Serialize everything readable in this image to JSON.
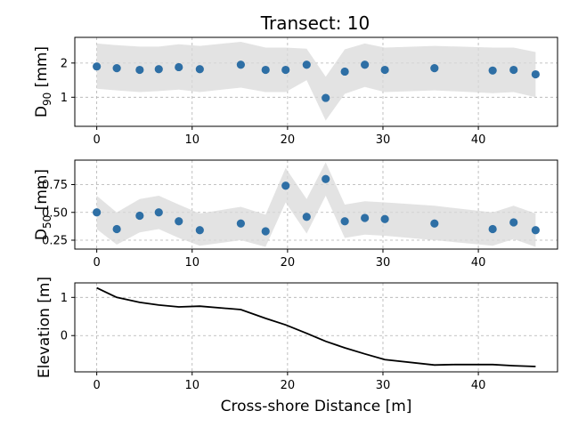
{
  "figure": {
    "title": "Transect: 10"
  },
  "chart_data": [
    {
      "type": "scatter",
      "name": "d90_panel",
      "ylabel_main": "D",
      "ylabel_sub": "90",
      "ylabel_unit": " [mm]",
      "xlim": [
        -2.3,
        48.3
      ],
      "ylim": [
        0.15,
        2.75
      ],
      "xticks": [
        0,
        10,
        20,
        30,
        40
      ],
      "yticks": [
        1,
        2
      ],
      "grid": true,
      "point_color": "#2e6fa5",
      "band_color": "#d9d9d9",
      "x": [
        0,
        2.1,
        4.5,
        6.5,
        8.6,
        10.8,
        15.1,
        17.7,
        19.8,
        22.0,
        24.0,
        26.0,
        28.1,
        30.2,
        35.4,
        41.5,
        43.7,
        46.0
      ],
      "y": [
        1.9,
        1.85,
        1.8,
        1.82,
        1.88,
        1.82,
        1.95,
        1.8,
        1.8,
        1.95,
        0.98,
        1.75,
        1.95,
        1.8,
        1.85,
        1.78,
        1.8,
        1.67
      ],
      "band_upper": [
        2.57,
        2.52,
        2.48,
        2.48,
        2.55,
        2.5,
        2.62,
        2.45,
        2.45,
        2.42,
        1.6,
        2.4,
        2.57,
        2.45,
        2.5,
        2.45,
        2.45,
        2.32
      ],
      "band_lower": [
        1.25,
        1.2,
        1.15,
        1.18,
        1.22,
        1.15,
        1.28,
        1.15,
        1.15,
        1.5,
        0.32,
        1.1,
        1.3,
        1.15,
        1.2,
        1.12,
        1.15,
        1.0
      ]
    },
    {
      "type": "scatter",
      "name": "d50_panel",
      "ylabel_main": "D",
      "ylabel_sub": "50",
      "ylabel_unit": " [mm]",
      "xlim": [
        -2.3,
        48.3
      ],
      "ylim": [
        0.17,
        0.97
      ],
      "xticks": [
        0,
        10,
        20,
        30,
        40
      ],
      "yticks": [
        0.25,
        0.5,
        0.75
      ],
      "ytick_labels": [
        "0.25",
        "0.50",
        "0.75"
      ],
      "grid": true,
      "point_color": "#2e6fa5",
      "band_color": "#d9d9d9",
      "x": [
        0,
        2.1,
        4.5,
        6.5,
        8.6,
        10.8,
        15.1,
        17.7,
        19.8,
        22.0,
        24.0,
        26.0,
        28.1,
        30.2,
        35.4,
        41.5,
        43.7,
        46.0
      ],
      "y": [
        0.5,
        0.35,
        0.47,
        0.5,
        0.42,
        0.34,
        0.4,
        0.33,
        0.74,
        0.46,
        0.8,
        0.42,
        0.45,
        0.44,
        0.4,
        0.35,
        0.41,
        0.34
      ],
      "band_upper": [
        0.65,
        0.5,
        0.62,
        0.65,
        0.57,
        0.49,
        0.55,
        0.48,
        0.9,
        0.62,
        0.95,
        0.57,
        0.6,
        0.59,
        0.56,
        0.5,
        0.56,
        0.49
      ],
      "band_lower": [
        0.35,
        0.21,
        0.32,
        0.35,
        0.27,
        0.2,
        0.25,
        0.19,
        0.59,
        0.31,
        0.65,
        0.27,
        0.3,
        0.29,
        0.25,
        0.2,
        0.26,
        0.19
      ]
    },
    {
      "type": "line",
      "name": "elevation_panel",
      "ylabel": "Elevation [m]",
      "xlabel": "Cross-shore Distance [m]",
      "xlim": [
        -2.3,
        48.3
      ],
      "ylim": [
        -0.95,
        1.38
      ],
      "xticks": [
        0,
        10,
        20,
        30,
        40
      ],
      "yticks": [
        0,
        1
      ],
      "grid": true,
      "line_color": "#000000",
      "x": [
        0,
        2.1,
        4.5,
        6.5,
        8.6,
        10.8,
        15.1,
        17.7,
        19.8,
        22.0,
        24.0,
        26.0,
        28.1,
        30.2,
        35.4,
        37.5,
        41.5,
        43.7,
        46.0
      ],
      "y": [
        1.25,
        1.0,
        0.87,
        0.8,
        0.75,
        0.77,
        0.68,
        0.45,
        0.28,
        0.06,
        -0.15,
        -0.32,
        -0.48,
        -0.63,
        -0.77,
        -0.76,
        -0.76,
        -0.79,
        -0.81
      ]
    }
  ]
}
